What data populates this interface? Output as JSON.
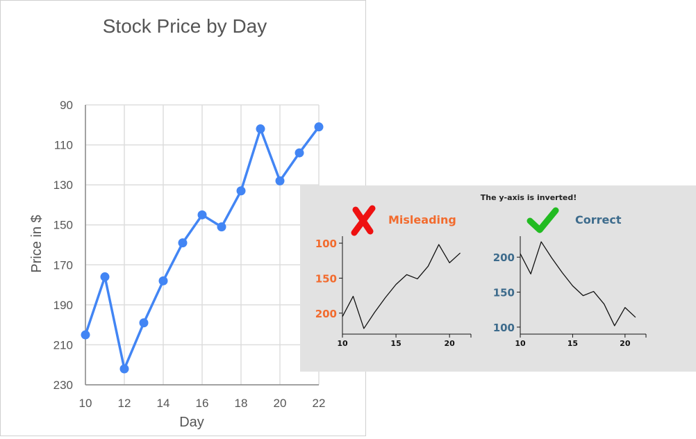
{
  "chart_data": [
    {
      "type": "line",
      "title": "Stock Price by Day",
      "xlabel": "Day",
      "ylabel": "Price in $",
      "x": [
        10,
        11,
        12,
        13,
        14,
        15,
        16,
        17,
        18,
        19,
        20,
        21,
        22
      ],
      "y": [
        205,
        176,
        222,
        199,
        178,
        159,
        145,
        151,
        133,
        102,
        128,
        114,
        101
      ],
      "xticks": [
        "10",
        "12",
        "14",
        "16",
        "18",
        "20",
        "22"
      ],
      "yticks": [
        "90",
        "110",
        "130",
        "150",
        "170",
        "190",
        "210",
        "230"
      ],
      "xlim": [
        10,
        22
      ],
      "ylim": [
        90,
        230
      ],
      "y_inverted": true,
      "grid": true,
      "color": "#4285f4"
    },
    {
      "type": "line",
      "title": "Misleading",
      "x": [
        10,
        11,
        12,
        13,
        14,
        15,
        16,
        17,
        18,
        19,
        20,
        21
      ],
      "y": [
        205,
        176,
        222,
        199,
        178,
        159,
        145,
        151,
        133,
        102,
        128,
        114
      ],
      "xticks": [
        "10",
        "15",
        "20"
      ],
      "yticks": [
        "100",
        "150",
        "200"
      ],
      "xlim": [
        10,
        22
      ],
      "ylim": [
        90,
        230
      ],
      "y_inverted": true,
      "label_color": "#f26b2e"
    },
    {
      "type": "line",
      "title": "Correct",
      "x": [
        10,
        11,
        12,
        13,
        14,
        15,
        16,
        17,
        18,
        19,
        20,
        21
      ],
      "y": [
        205,
        176,
        222,
        199,
        178,
        159,
        145,
        151,
        133,
        102,
        128,
        114
      ],
      "xticks": [
        "10",
        "15",
        "20"
      ],
      "yticks": [
        "100",
        "150",
        "200"
      ],
      "xlim": [
        10,
        22
      ],
      "ylim": [
        90,
        230
      ],
      "y_inverted": false,
      "label_color": "#3d6b8c"
    }
  ],
  "inset": {
    "caption": "The y-axis is inverted!",
    "bad_icon": "red-x-icon",
    "good_icon": "green-check-icon",
    "bad_color": "#ee1111",
    "good_color": "#22bb22"
  }
}
